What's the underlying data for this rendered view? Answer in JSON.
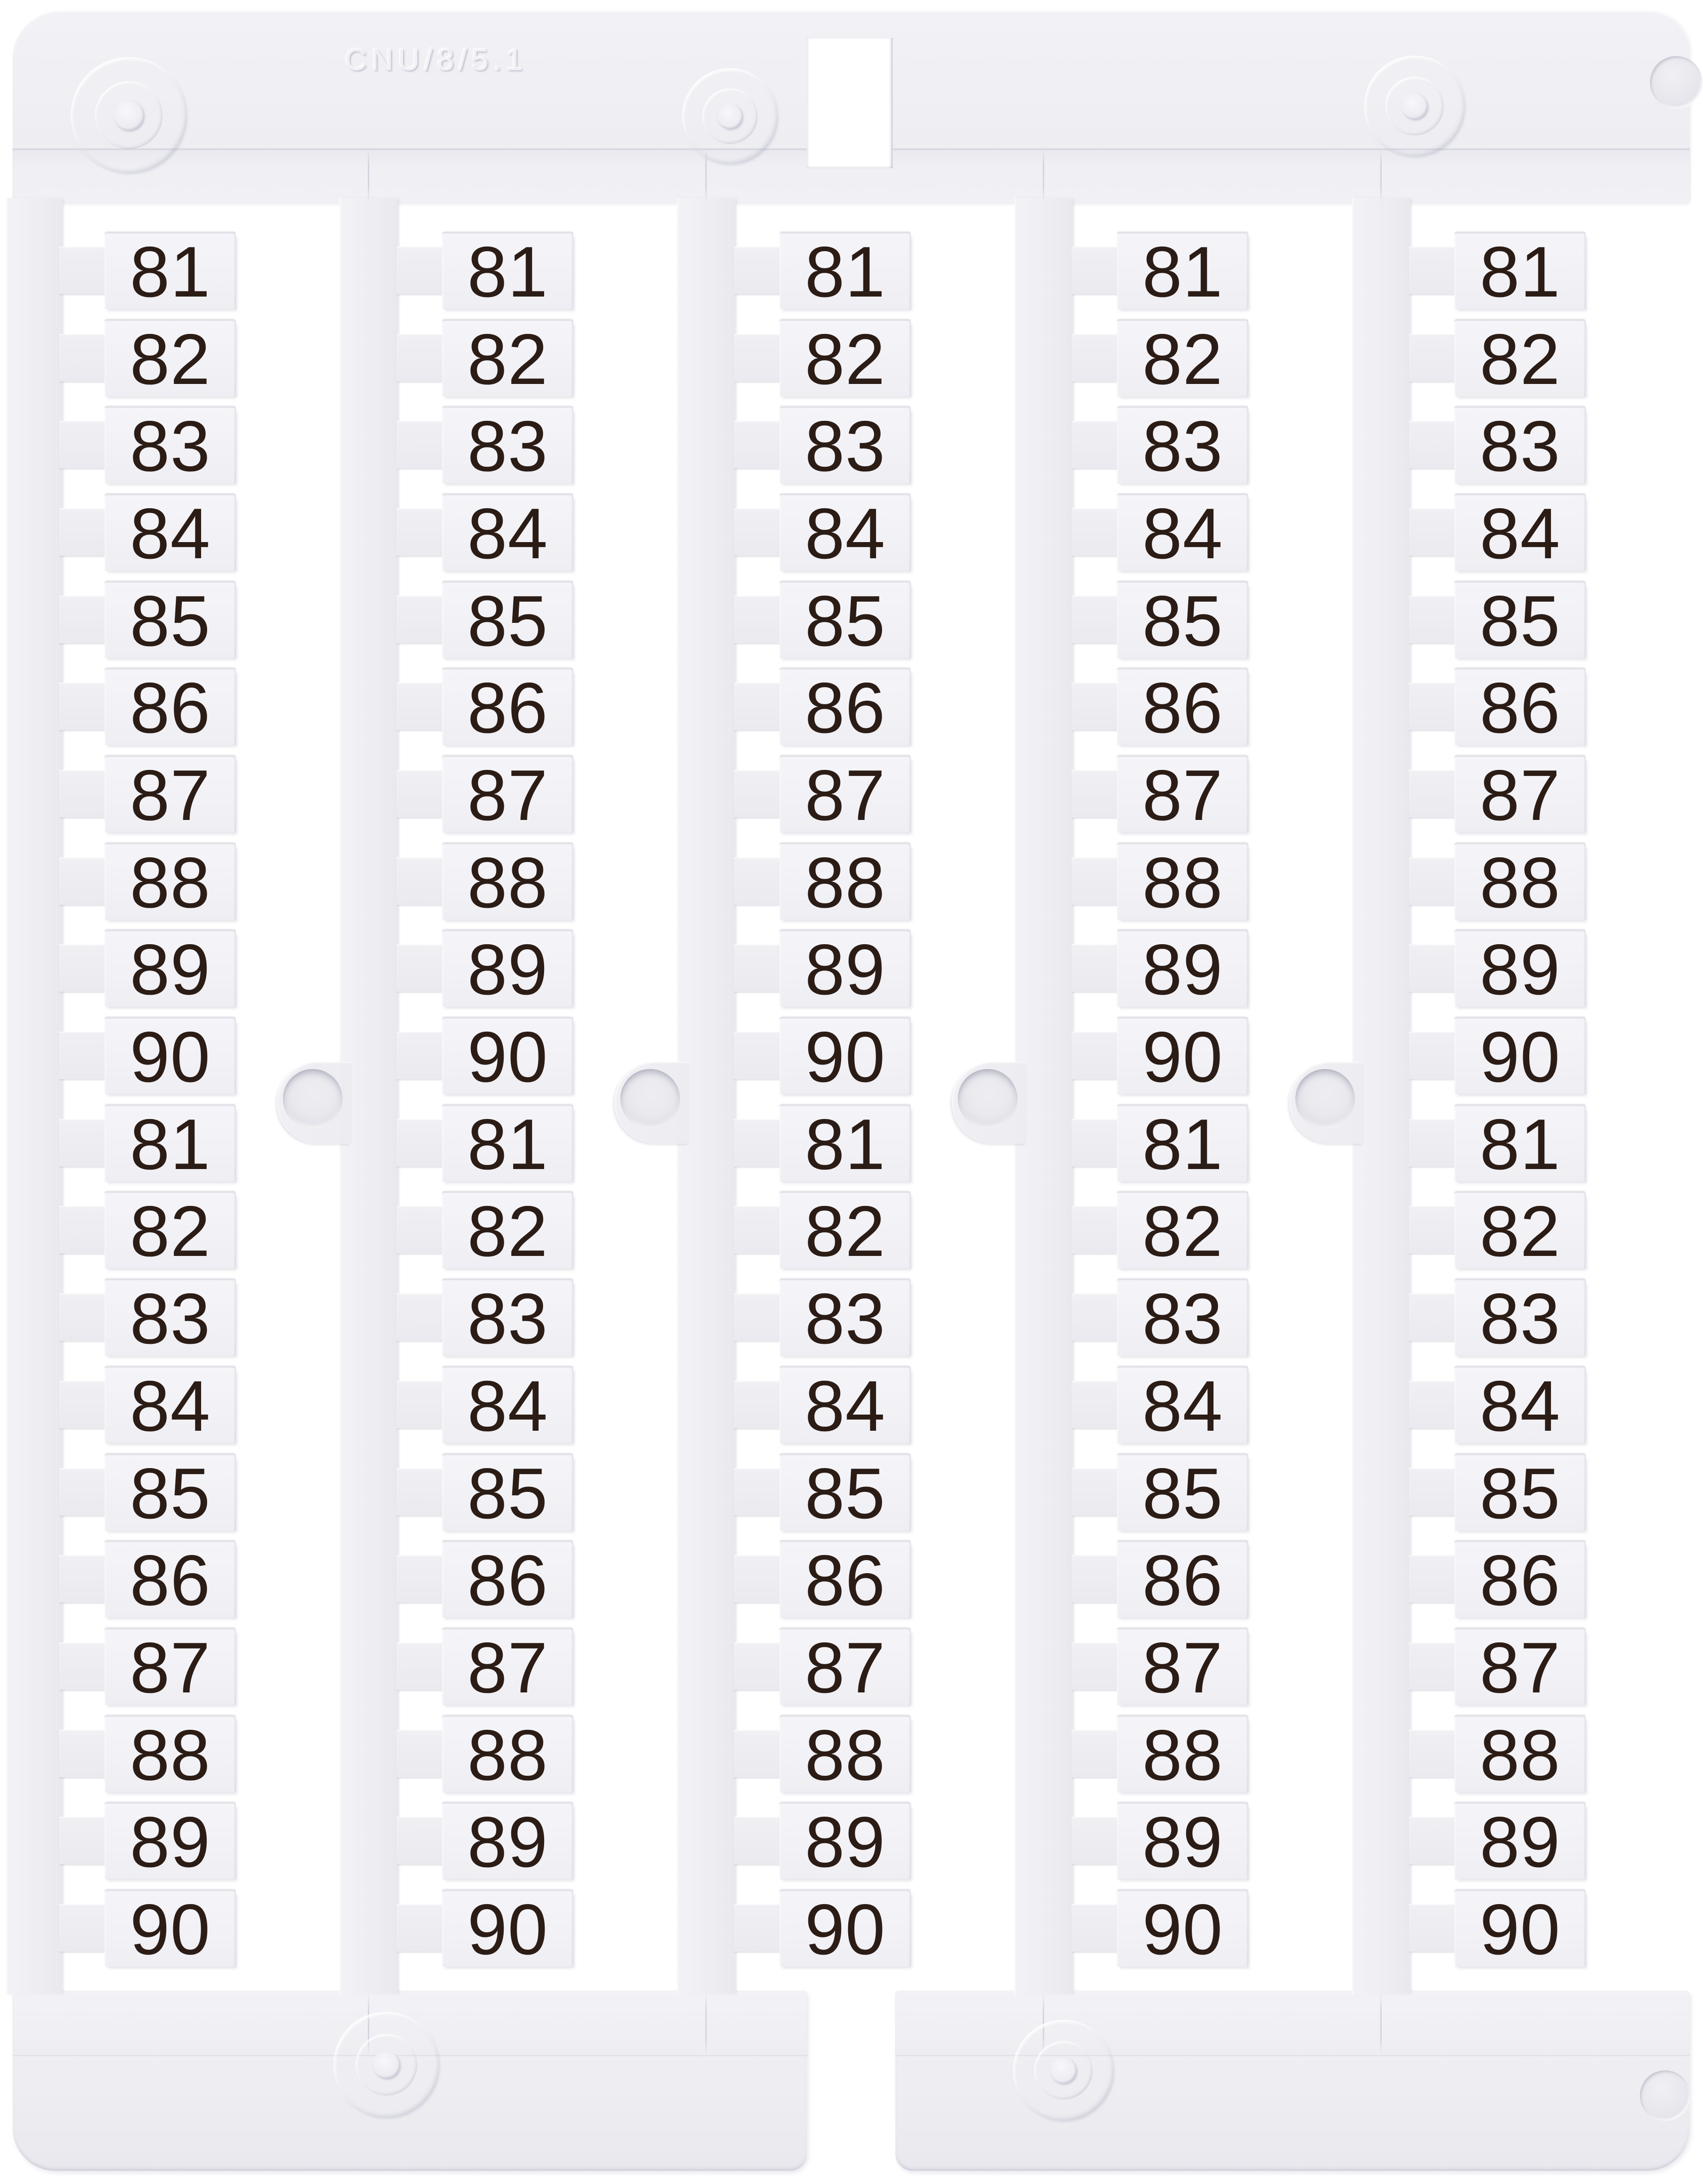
{
  "product": {
    "embossed_code": "CNU/8/5.1",
    "columns": [
      {
        "tags": [
          "81",
          "82",
          "83",
          "84",
          "85",
          "86",
          "87",
          "88",
          "89",
          "90",
          "81",
          "82",
          "83",
          "84",
          "85",
          "86",
          "87",
          "88",
          "89",
          "90"
        ]
      },
      {
        "tags": [
          "81",
          "82",
          "83",
          "84",
          "85",
          "86",
          "87",
          "88",
          "89",
          "90",
          "81",
          "82",
          "83",
          "84",
          "85",
          "86",
          "87",
          "88",
          "89",
          "90"
        ]
      },
      {
        "tags": [
          "81",
          "82",
          "83",
          "84",
          "85",
          "86",
          "87",
          "88",
          "89",
          "90",
          "81",
          "82",
          "83",
          "84",
          "85",
          "86",
          "87",
          "88",
          "89",
          "90"
        ]
      },
      {
        "tags": [
          "81",
          "82",
          "83",
          "84",
          "85",
          "86",
          "87",
          "88",
          "89",
          "90",
          "81",
          "82",
          "83",
          "84",
          "85",
          "86",
          "87",
          "88",
          "89",
          "90"
        ]
      },
      {
        "tags": [
          "81",
          "82",
          "83",
          "84",
          "85",
          "86",
          "87",
          "88",
          "89",
          "90",
          "81",
          "82",
          "83",
          "84",
          "85",
          "86",
          "87",
          "88",
          "89",
          "90"
        ]
      }
    ]
  },
  "colors": {
    "background": "#ffffff",
    "plastic": "#efeff3",
    "tag_face": "#f3f3f7",
    "digit": "#2b1c15"
  }
}
